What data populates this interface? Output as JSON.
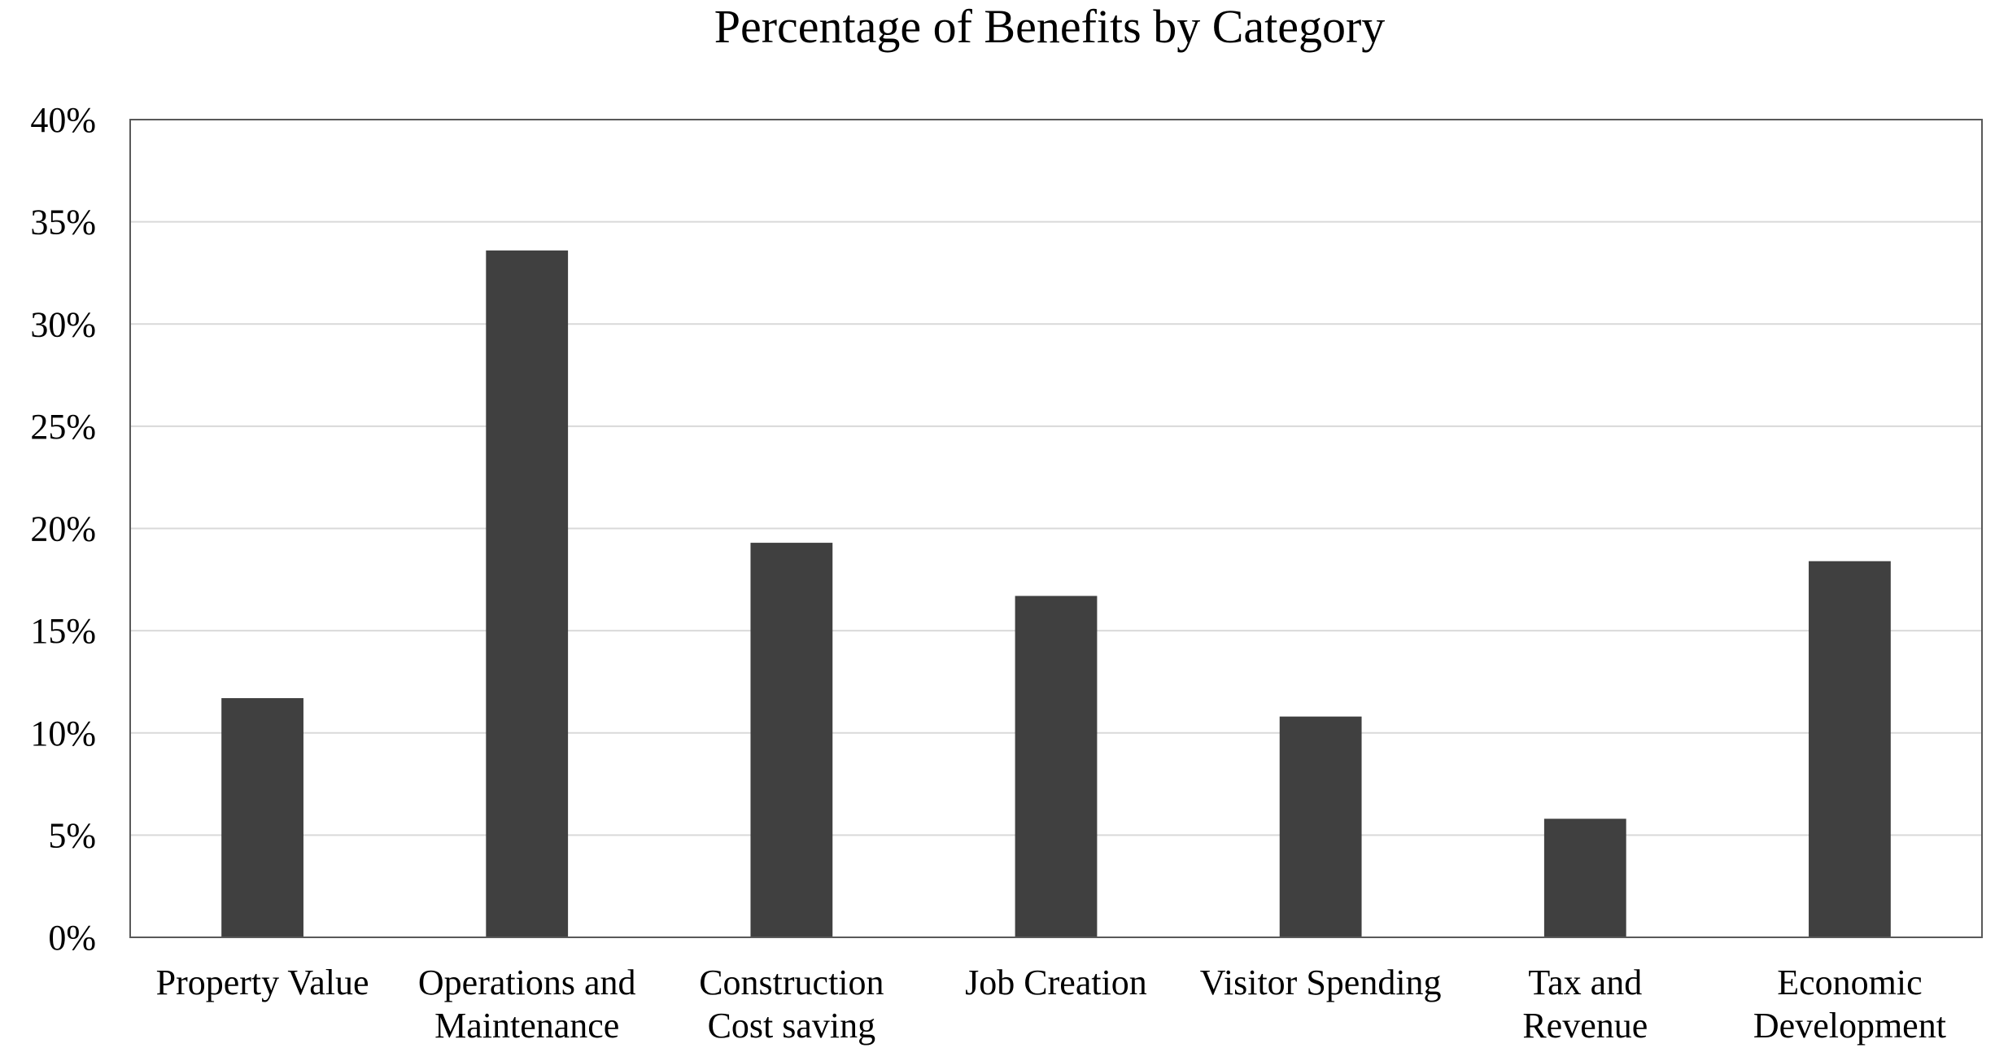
{
  "chart_data": {
    "type": "bar",
    "title": "Percentage of Benefits by Category",
    "xlabel": "",
    "ylabel": "",
    "categories": [
      [
        "Property Value"
      ],
      [
        "Operations and",
        "Maintenance"
      ],
      [
        "Construction",
        "Cost saving"
      ],
      [
        "Job Creation"
      ],
      [
        "Visitor Spending"
      ],
      [
        "Tax and",
        "Revenue"
      ],
      [
        "Economic",
        "Development"
      ]
    ],
    "values": [
      11.7,
      33.6,
      19.3,
      16.7,
      10.8,
      5.8,
      18.4
    ],
    "ylim": [
      0,
      40
    ],
    "yticks": [
      0,
      5,
      10,
      15,
      20,
      25,
      30,
      35,
      40
    ],
    "ytick_labels": [
      "0%",
      "5%",
      "10%",
      "15%",
      "20%",
      "25%",
      "30%",
      "35%",
      "40%"
    ],
    "grid": true,
    "legend": "none",
    "colors": {
      "bar": "#404040",
      "grid": "#d9d9d9",
      "axis": "#595959",
      "text": "#000000"
    }
  }
}
